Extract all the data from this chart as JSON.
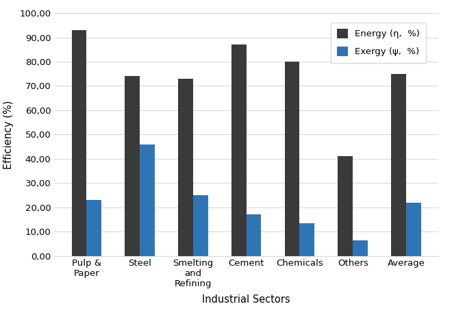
{
  "categories": [
    "Pulp &\nPaper",
    "Steel",
    "Smelting\nand\nRefining",
    "Cement",
    "Chemicals",
    "Others",
    "Average"
  ],
  "energy_values": [
    93,
    74,
    73,
    87,
    80,
    41,
    75
  ],
  "exergy_values": [
    23,
    46,
    25,
    17,
    13.5,
    6.5,
    22
  ],
  "energy_color": "#3a3a3a",
  "exergy_color": "#2e75b6",
  "energy_label": "Energy (η,  %)",
  "exergy_label": "Exergy (ψ,  %)",
  "xlabel": "Industrial Sectors",
  "ylabel": "Efficiency (%)",
  "ylim": [
    0,
    100
  ],
  "yticks": [
    0,
    10,
    20,
    30,
    40,
    50,
    60,
    70,
    80,
    90,
    100
  ],
  "ytick_labels": [
    "0,00",
    "10,00",
    "20,00",
    "30,00",
    "40,00",
    "50,00",
    "60,00",
    "70,00",
    "80,00",
    "90,00",
    "100,00"
  ],
  "bar_width": 0.28,
  "legend_loc": "upper right",
  "grid_color": "#d9d9d9",
  "spine_color": "#d9d9d9"
}
